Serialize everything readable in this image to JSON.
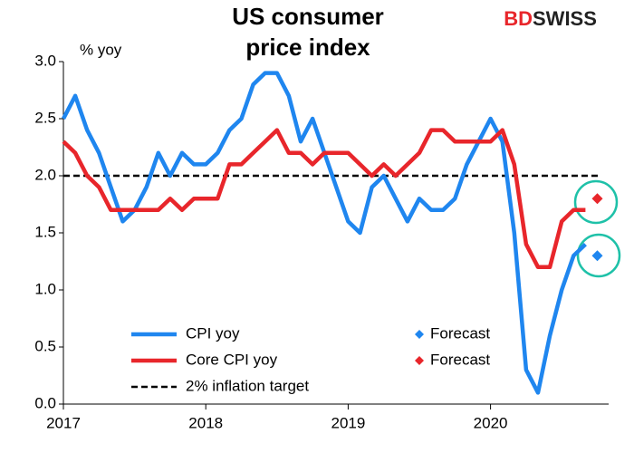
{
  "chart_data": {
    "type": "line",
    "title": [
      "US consumer",
      "price index"
    ],
    "logo": [
      "BD",
      "SWISS"
    ],
    "y_label": "% yoy",
    "categories": [
      "2017",
      null,
      null,
      null,
      null,
      null,
      null,
      null,
      null,
      null,
      null,
      null,
      "2018",
      null,
      null,
      null,
      null,
      null,
      null,
      null,
      null,
      null,
      null,
      null,
      "2019",
      null,
      null,
      null,
      null,
      null,
      null,
      null,
      null,
      null,
      null,
      null,
      "2020",
      null,
      null,
      null,
      null,
      null,
      null,
      null,
      null,
      null
    ],
    "series": [
      {
        "name": "CPI yoy",
        "color": "#1f86ef",
        "style": "line",
        "values": [
          2.5,
          2.7,
          2.4,
          2.2,
          1.9,
          1.6,
          1.7,
          1.9,
          2.2,
          2.0,
          2.2,
          2.1,
          2.1,
          2.2,
          2.4,
          2.5,
          2.8,
          2.9,
          2.9,
          2.7,
          2.3,
          2.5,
          2.2,
          1.9,
          1.6,
          1.5,
          1.9,
          2.0,
          1.8,
          1.6,
          1.8,
          1.7,
          1.7,
          1.8,
          2.1,
          2.3,
          2.5,
          2.3,
          1.5,
          0.3,
          0.1,
          0.6,
          1.0,
          1.3,
          1.4,
          null
        ]
      },
      {
        "name": "Core CPI yoy",
        "color": "#e8262b",
        "style": "line",
        "values": [
          2.3,
          2.2,
          2.0,
          1.9,
          1.7,
          1.7,
          1.7,
          1.7,
          1.7,
          1.8,
          1.7,
          1.8,
          1.8,
          1.8,
          2.1,
          2.1,
          2.2,
          2.3,
          2.4,
          2.2,
          2.2,
          2.1,
          2.2,
          2.2,
          2.2,
          2.1,
          2.0,
          2.1,
          2.0,
          2.1,
          2.2,
          2.4,
          2.4,
          2.3,
          2.3,
          2.3,
          2.3,
          2.4,
          2.1,
          1.4,
          1.2,
          1.2,
          1.6,
          1.7,
          1.7,
          null
        ]
      },
      {
        "name": "Forecast",
        "color": "#1f86ef",
        "style": "diamond",
        "values": [
          null,
          null,
          null,
          null,
          null,
          null,
          null,
          null,
          null,
          null,
          null,
          null,
          null,
          null,
          null,
          null,
          null,
          null,
          null,
          null,
          null,
          null,
          null,
          null,
          null,
          null,
          null,
          null,
          null,
          null,
          null,
          null,
          null,
          null,
          null,
          null,
          null,
          null,
          null,
          null,
          null,
          null,
          null,
          null,
          null,
          1.3
        ]
      },
      {
        "name": "Forecast",
        "color": "#e8262b",
        "style": "diamond",
        "values": [
          null,
          null,
          null,
          null,
          null,
          null,
          null,
          null,
          null,
          null,
          null,
          null,
          null,
          null,
          null,
          null,
          null,
          null,
          null,
          null,
          null,
          null,
          null,
          null,
          null,
          null,
          null,
          null,
          null,
          null,
          null,
          null,
          null,
          null,
          null,
          null,
          null,
          null,
          null,
          null,
          null,
          null,
          null,
          null,
          null,
          1.8
        ]
      }
    ],
    "target": {
      "name": "2% inflation target",
      "value": 2.0,
      "color": "#000000"
    },
    "ylim": [
      0,
      3
    ],
    "yticks": [
      {
        "value": 0,
        "label": "0.0"
      },
      0.5,
      {
        "value": 1,
        "label": "1.0"
      },
      1.5,
      {
        "value": 2,
        "label": "2.0"
      },
      2.5,
      {
        "value": 3,
        "label": "3.0"
      }
    ]
  }
}
